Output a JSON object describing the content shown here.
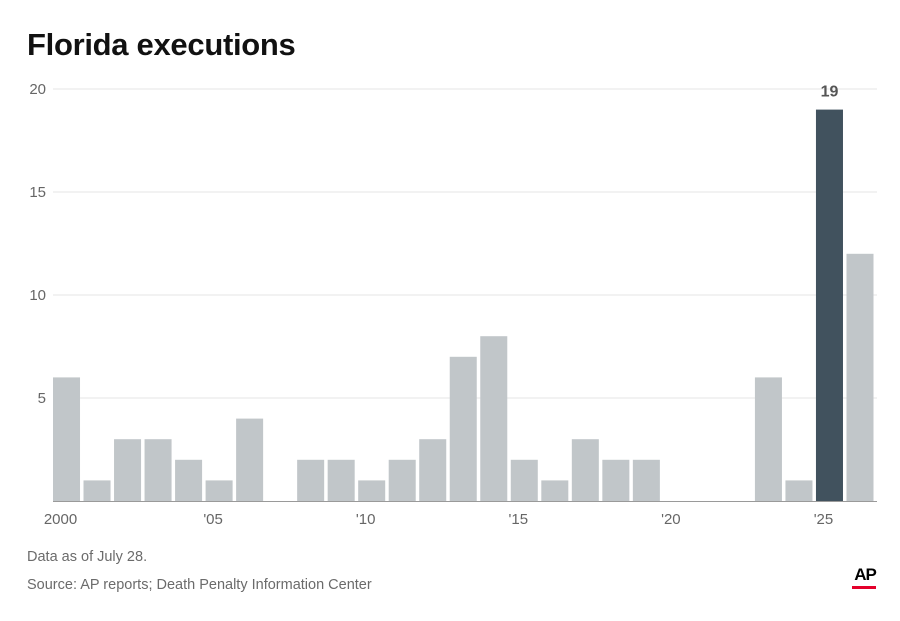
{
  "title": "Florida executions",
  "note": "Data as of July 28.",
  "source": "Source: AP reports; Death Penalty Information Center",
  "logo": "AP",
  "colors": {
    "bar": "#c1c6c9",
    "highlight": "#41525e",
    "grid": "#e6e6e6",
    "baseline": "#9a9a9a",
    "logo_bar": "#e4002b"
  },
  "chart_data": {
    "type": "bar",
    "title": "Florida executions",
    "x": [
      2000,
      2001,
      2002,
      2003,
      2004,
      2005,
      2006,
      2007,
      2008,
      2009,
      2010,
      2011,
      2012,
      2013,
      2014,
      2015,
      2016,
      2017,
      2018,
      2019,
      2020,
      2021,
      2022,
      2023,
      2024,
      2025,
      2026
    ],
    "values": [
      6,
      1,
      3,
      3,
      2,
      1,
      4,
      0,
      2,
      2,
      1,
      2,
      3,
      7,
      8,
      2,
      1,
      3,
      2,
      2,
      0,
      0,
      0,
      6,
      1,
      19,
      12
    ],
    "highlight_index": 25,
    "data_labels": [
      {
        "index": 25,
        "text": "19"
      }
    ],
    "x_tick_labels": [
      {
        "index": 0,
        "text": "2000"
      },
      {
        "index": 5,
        "text": "'05"
      },
      {
        "index": 10,
        "text": "'10"
      },
      {
        "index": 15,
        "text": "'15"
      },
      {
        "index": 20,
        "text": "'20"
      },
      {
        "index": 25,
        "text": "'25"
      }
    ],
    "y_ticks": [
      5,
      10,
      15,
      20
    ],
    "ylim": [
      0,
      20
    ],
    "grid": true,
    "legend": "none",
    "xlabel": "",
    "ylabel": ""
  }
}
